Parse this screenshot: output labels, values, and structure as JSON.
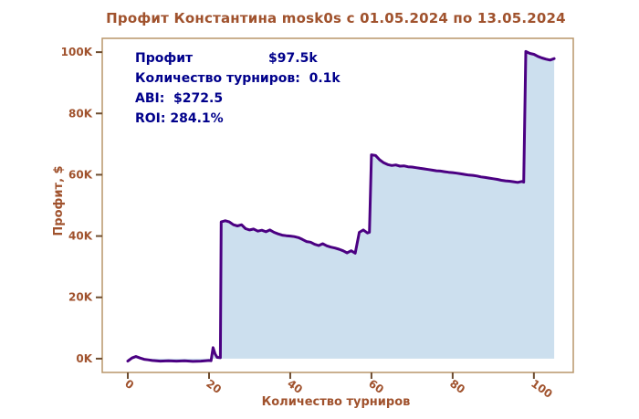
{
  "chart_data": {
    "type": "area",
    "title": "Профит Константина mosk0s с 01.05.2024 по 13.05.2024",
    "xlabel": "Количество турниров",
    "ylabel": "Профит, $",
    "xlim": [
      -6.3,
      109.7
    ],
    "ylim": [
      -4500,
      104500
    ],
    "grid": false,
    "legend": "none",
    "xticks": {
      "values": [
        0,
        20,
        40,
        60,
        80,
        100
      ],
      "labels": [
        "0",
        "20",
        "40",
        "60",
        "80",
        "100"
      ]
    },
    "yticks": {
      "values": [
        0,
        20000,
        40000,
        60000,
        80000,
        100000
      ],
      "labels": [
        "0K",
        "20K",
        "40K",
        "60K",
        "80K",
        "100K"
      ]
    },
    "annotation": {
      "lines": [
        "Профит                 $97.5k",
        "Количество турниров:  0.1k",
        "ABI:  $272.5",
        "ROI: 284.1%"
      ]
    },
    "colors": {
      "line": "#4b0082",
      "fill": "#c7dcec",
      "axis": "#b8956a",
      "tick": "#6d4c2f",
      "label": "#a0522d",
      "title": "#a0522d",
      "annotation": "#00008b"
    },
    "series": [
      {
        "name": "profit",
        "points": [
          [
            0,
            -800
          ],
          [
            1,
            200
          ],
          [
            2,
            700
          ],
          [
            3,
            200
          ],
          [
            4,
            -200
          ],
          [
            5,
            -400
          ],
          [
            6,
            -600
          ],
          [
            8,
            -800
          ],
          [
            10,
            -700
          ],
          [
            12,
            -800
          ],
          [
            14,
            -700
          ],
          [
            16,
            -900
          ],
          [
            18,
            -800
          ],
          [
            20,
            -600
          ],
          [
            20.5,
            -700
          ],
          [
            21,
            3600
          ],
          [
            21.5,
            1500
          ],
          [
            22,
            400
          ],
          [
            22.8,
            300
          ],
          [
            23,
            44600
          ],
          [
            24,
            45000
          ],
          [
            25,
            44600
          ],
          [
            26,
            43700
          ],
          [
            27,
            43300
          ],
          [
            28,
            43700
          ],
          [
            29,
            42400
          ],
          [
            30,
            42000
          ],
          [
            31,
            42300
          ],
          [
            32,
            41600
          ],
          [
            33,
            41900
          ],
          [
            34,
            41400
          ],
          [
            35,
            42000
          ],
          [
            36,
            41200
          ],
          [
            37,
            40700
          ],
          [
            38,
            40300
          ],
          [
            39,
            40100
          ],
          [
            40,
            40000
          ],
          [
            41,
            39800
          ],
          [
            42,
            39500
          ],
          [
            43,
            38900
          ],
          [
            44,
            38200
          ],
          [
            45,
            38000
          ],
          [
            46,
            37300
          ],
          [
            47,
            36900
          ],
          [
            48,
            37500
          ],
          [
            49,
            36800
          ],
          [
            50,
            36400
          ],
          [
            51,
            36100
          ],
          [
            52,
            35700
          ],
          [
            53,
            35200
          ],
          [
            54,
            34500
          ],
          [
            55,
            35200
          ],
          [
            56,
            34400
          ],
          [
            57,
            41200
          ],
          [
            58,
            42000
          ],
          [
            59,
            41000
          ],
          [
            59.5,
            41200
          ],
          [
            60,
            66500
          ],
          [
            61,
            66300
          ],
          [
            62,
            64900
          ],
          [
            63,
            63900
          ],
          [
            64,
            63300
          ],
          [
            65,
            63000
          ],
          [
            66,
            63200
          ],
          [
            67,
            62800
          ],
          [
            68,
            62900
          ],
          [
            69,
            62600
          ],
          [
            70,
            62500
          ],
          [
            71,
            62300
          ],
          [
            72,
            62100
          ],
          [
            73,
            61900
          ],
          [
            74,
            61700
          ],
          [
            75,
            61500
          ],
          [
            76,
            61300
          ],
          [
            77,
            61200
          ],
          [
            78,
            61000
          ],
          [
            79,
            60800
          ],
          [
            80,
            60700
          ],
          [
            81,
            60500
          ],
          [
            82,
            60300
          ],
          [
            83,
            60100
          ],
          [
            84,
            59900
          ],
          [
            85,
            59800
          ],
          [
            86,
            59600
          ],
          [
            87,
            59300
          ],
          [
            88,
            59100
          ],
          [
            89,
            58900
          ],
          [
            90,
            58700
          ],
          [
            91,
            58500
          ],
          [
            92,
            58200
          ],
          [
            93,
            58000
          ],
          [
            94,
            57900
          ],
          [
            95,
            57700
          ],
          [
            96,
            57500
          ],
          [
            97,
            57800
          ],
          [
            97.5,
            57600
          ],
          [
            98,
            100200
          ],
          [
            99,
            99600
          ],
          [
            100,
            99300
          ],
          [
            101,
            98600
          ],
          [
            102,
            98100
          ],
          [
            103,
            97700
          ],
          [
            104,
            97400
          ],
          [
            105,
            97900
          ]
        ]
      }
    ]
  }
}
